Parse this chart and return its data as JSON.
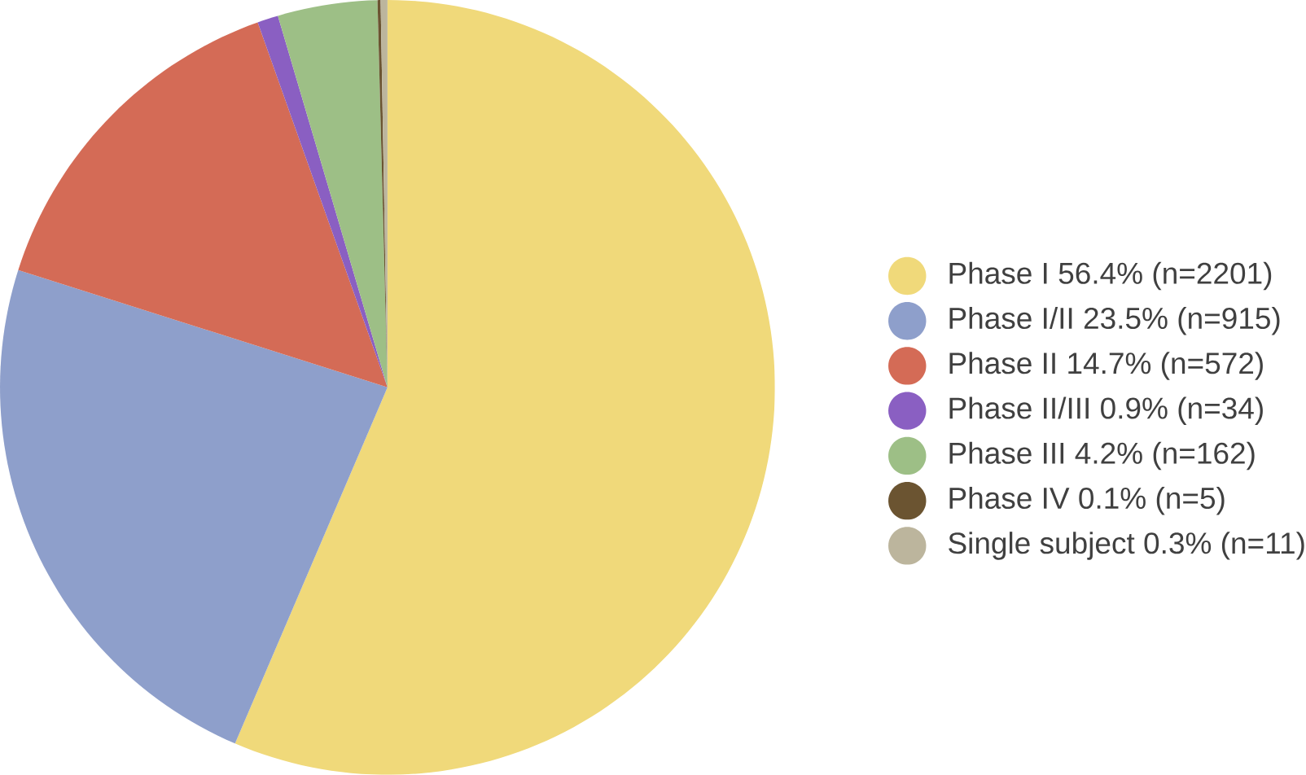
{
  "chart_data": {
    "type": "pie",
    "categories": [
      "Phase I  56.4% (n=2201)",
      "Phase I/II  23.5% (n=915)",
      "Phase II  14.7% (n=572)",
      "Phase II/III  0.9% (n=34)",
      "Phase III  4.2% (n=162)",
      "Phase IV  0.1% (n=5)",
      "Single subject  0.3% (n=11)"
    ],
    "values": [
      2201,
      915,
      572,
      34,
      162,
      5,
      11
    ],
    "colors": [
      "#f0d97a",
      "#8e9fcb",
      "#d46b56",
      "#8a5fc2",
      "#9dbf86",
      "#6b5431",
      "#bcb59d"
    ],
    "legend": "right"
  }
}
